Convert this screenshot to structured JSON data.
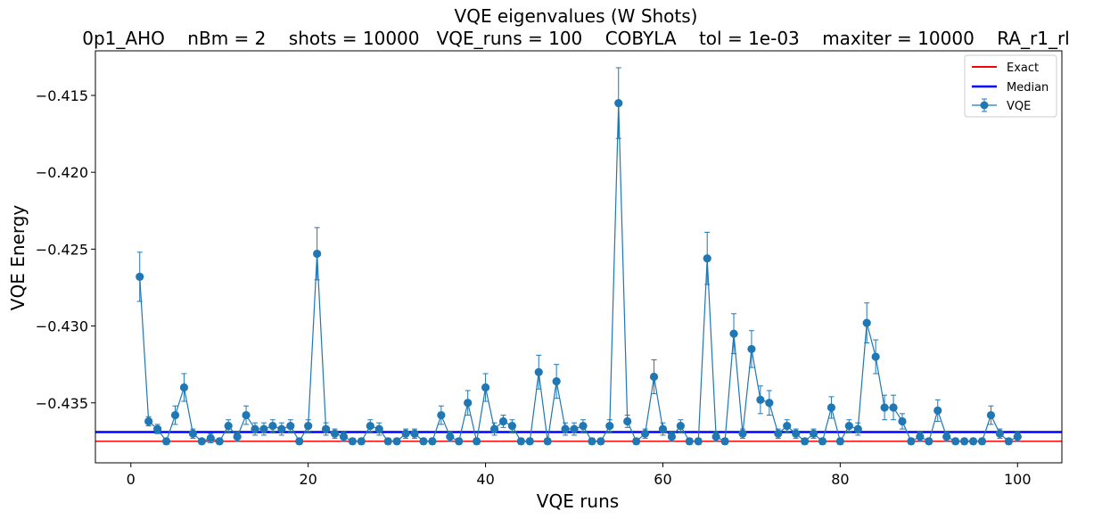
{
  "chart_data": {
    "type": "line",
    "title": "VQE eigenvalues (W Shots)",
    "subtitle": "0p1_AHO    nBm = 2    shots = 10000   VQE_runs = 100    COBYLA    tol = 1e-03    maxiter = 10000    RA_r1_rl",
    "xlabel": "VQE runs",
    "ylabel": "VQE Energy",
    "xlim": [
      -4.0,
      105.0
    ],
    "ylim": [
      -0.4389,
      -0.4121
    ],
    "x_ticks": [
      0,
      20,
      40,
      60,
      80,
      100
    ],
    "x_tick_labels": [
      "0",
      "20",
      "40",
      "60",
      "80",
      "100"
    ],
    "y_ticks": [
      -0.415,
      -0.42,
      -0.425,
      -0.43,
      -0.435
    ],
    "y_tick_labels": [
      "−0.415",
      "−0.420",
      "−0.425",
      "−0.430",
      "−0.435"
    ],
    "grid": false,
    "legend_position": "top-right",
    "reference_lines": [
      {
        "name": "Exact",
        "y": -0.4375,
        "color": "#ff0000"
      },
      {
        "name": "Median",
        "y": -0.4369,
        "color": "#0000ff"
      }
    ],
    "series": [
      {
        "name": "VQE",
        "color": "#1f77b4",
        "x": [
          1,
          2,
          3,
          4,
          5,
          6,
          7,
          8,
          9,
          10,
          11,
          12,
          13,
          14,
          15,
          16,
          17,
          18,
          19,
          20,
          21,
          22,
          23,
          24,
          25,
          26,
          27,
          28,
          29,
          30,
          31,
          32,
          33,
          34,
          35,
          36,
          37,
          38,
          39,
          40,
          41,
          42,
          43,
          44,
          45,
          46,
          47,
          48,
          49,
          50,
          51,
          52,
          53,
          54,
          55,
          56,
          57,
          58,
          59,
          60,
          61,
          62,
          63,
          64,
          65,
          66,
          67,
          68,
          69,
          70,
          71,
          72,
          73,
          74,
          75,
          76,
          77,
          78,
          79,
          80,
          81,
          82,
          83,
          84,
          85,
          86,
          87,
          88,
          89,
          90,
          91,
          92,
          93,
          94,
          95,
          96,
          97,
          98,
          99,
          100
        ],
        "y": [
          -0.4268,
          -0.4362,
          -0.4367,
          -0.4375,
          -0.4358,
          -0.434,
          -0.437,
          -0.4375,
          -0.4373,
          -0.4375,
          -0.4365,
          -0.4372,
          -0.4358,
          -0.4367,
          -0.4367,
          -0.4365,
          -0.4367,
          -0.4365,
          -0.4375,
          -0.4365,
          -0.4253,
          -0.4367,
          -0.437,
          -0.4372,
          -0.4375,
          -0.4375,
          -0.4365,
          -0.4367,
          -0.4375,
          -0.4375,
          -0.437,
          -0.437,
          -0.4375,
          -0.4375,
          -0.4358,
          -0.4372,
          -0.4375,
          -0.435,
          -0.4375,
          -0.434,
          -0.4367,
          -0.4362,
          -0.4365,
          -0.4375,
          -0.4375,
          -0.433,
          -0.4375,
          -0.4336,
          -0.4367,
          -0.4367,
          -0.4365,
          -0.4375,
          -0.4375,
          -0.4365,
          -0.4155,
          -0.4362,
          -0.4375,
          -0.437,
          -0.4333,
          -0.4367,
          -0.4372,
          -0.4365,
          -0.4375,
          -0.4375,
          -0.4256,
          -0.4372,
          -0.4375,
          -0.4305,
          -0.437,
          -0.4315,
          -0.4348,
          -0.435,
          -0.437,
          -0.4365,
          -0.437,
          -0.4375,
          -0.437,
          -0.4375,
          -0.4353,
          -0.4375,
          -0.4365,
          -0.4367,
          -0.4298,
          -0.432,
          -0.4353,
          -0.4353,
          -0.4362,
          -0.4375,
          -0.4372,
          -0.4375,
          -0.4355,
          -0.4372,
          -0.4375,
          -0.4375,
          -0.4375,
          -0.4375,
          -0.4358,
          -0.437,
          -0.4375,
          -0.4372
        ],
        "err": [
          0.0016,
          0.0003,
          0.0003,
          0.0002,
          0.0006,
          0.0009,
          0.0003,
          0.0001,
          0.0003,
          0.0002,
          0.0004,
          0.0003,
          0.0006,
          0.0004,
          0.0004,
          0.0004,
          0.0004,
          0.0004,
          0.0002,
          0.0004,
          0.0017,
          0.0004,
          0.0003,
          0.0003,
          0.0002,
          0.0002,
          0.0004,
          0.0004,
          0.0002,
          0.0002,
          0.0003,
          0.0003,
          0.0002,
          0.0002,
          0.0006,
          0.0003,
          0.0002,
          0.0008,
          0.0002,
          0.0009,
          0.0004,
          0.0004,
          0.0004,
          0.0002,
          0.0002,
          0.0011,
          0.0002,
          0.0011,
          0.0004,
          0.0004,
          0.0004,
          0.0002,
          0.0002,
          0.0004,
          0.0023,
          0.0004,
          0.0002,
          0.0003,
          0.0011,
          0.0004,
          0.0003,
          0.0004,
          0.0002,
          0.0002,
          0.0017,
          0.0003,
          0.0002,
          0.0013,
          0.0003,
          0.0012,
          0.0009,
          0.0008,
          0.0003,
          0.0004,
          0.0003,
          0.0002,
          0.0003,
          0.0002,
          0.0007,
          0.0002,
          0.0004,
          0.0004,
          0.0013,
          0.0011,
          0.0008,
          0.0008,
          0.0005,
          0.0002,
          0.0003,
          0.0002,
          0.0007,
          0.0003,
          0.0002,
          0.0002,
          0.0002,
          0.0002,
          0.0006,
          0.0003,
          0.0002,
          0.0003
        ]
      }
    ]
  },
  "legend": {
    "items": [
      {
        "label": "Exact",
        "color": "#ff0000",
        "kind": "line"
      },
      {
        "label": "Median",
        "color": "#0000ff",
        "kind": "line"
      },
      {
        "label": "VQE",
        "color": "#1f77b4",
        "kind": "errorbar"
      }
    ]
  }
}
